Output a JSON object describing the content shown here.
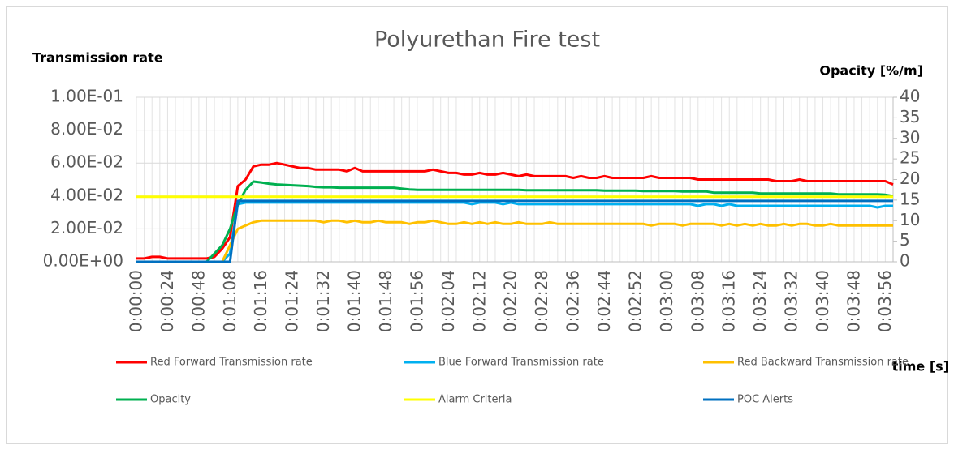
{
  "chart_data": {
    "type": "line",
    "title": "Polyurethan Fire test",
    "y_label": "Transmission rate",
    "y2_label": "Opacity [%/m]",
    "x_label": "time [s]",
    "categories": [
      "0:00:00",
      null,
      null,
      null,
      "0:00:24",
      null,
      null,
      null,
      "0:00:48",
      null,
      null,
      null,
      "0:01:08",
      null,
      null,
      null,
      "0:01:16",
      null,
      null,
      null,
      "0:01:24",
      null,
      null,
      null,
      "0:01:32",
      null,
      null,
      null,
      "0:01:40",
      null,
      null,
      null,
      "0:01:48",
      null,
      null,
      null,
      "0:01:56",
      null,
      null,
      null,
      "0:02:04",
      null,
      null,
      null,
      "0:02:12",
      null,
      null,
      null,
      "0:02:20",
      null,
      null,
      null,
      "0:02:28",
      null,
      null,
      null,
      "0:02:36",
      null,
      null,
      null,
      "0:02:44",
      null,
      null,
      null,
      "0:02:52",
      null,
      null,
      null,
      "0:03:00",
      null,
      null,
      null,
      "0:03:08",
      null,
      null,
      null,
      "0:03:16",
      null,
      null,
      null,
      "0:03:24",
      null,
      null,
      null,
      "0:03:32",
      null,
      null,
      null,
      "0:03:40",
      null,
      null,
      null,
      "0:03:48",
      null,
      null,
      null,
      "0:03:56",
      null
    ],
    "series": [
      {
        "name": "Red Forward Transmission rate",
        "color": "#ff0000",
        "values": [
          0.002,
          0.002,
          0.003,
          0.003,
          0.002,
          0.002,
          0.002,
          0.002,
          0.002,
          0.002,
          0.003,
          0.008,
          0.015,
          0.046,
          0.05,
          0.058,
          0.059,
          0.059,
          0.06,
          0.059,
          0.058,
          0.057,
          0.057,
          0.056,
          0.056,
          0.056,
          0.056,
          0.055,
          0.057,
          0.055,
          0.055,
          0.055,
          0.055,
          0.055,
          0.055,
          0.055,
          0.055,
          0.055,
          0.056,
          0.055,
          0.054,
          0.054,
          0.053,
          0.053,
          0.054,
          0.053,
          0.053,
          0.054,
          0.053,
          0.052,
          0.053,
          0.052,
          0.052,
          0.052,
          0.052,
          0.052,
          0.051,
          0.052,
          0.051,
          0.051,
          0.052,
          0.051,
          0.051,
          0.051,
          0.051,
          0.051,
          0.052,
          0.051,
          0.051,
          0.051,
          0.051,
          0.051,
          0.05,
          0.05,
          0.05,
          0.05,
          0.05,
          0.05,
          0.05,
          0.05,
          0.05,
          0.05,
          0.049,
          0.049,
          0.049,
          0.05,
          0.049,
          0.049,
          0.049,
          0.049,
          0.049,
          0.049,
          0.049,
          0.049,
          0.049,
          0.049,
          0.049,
          0.047
        ]
      },
      {
        "name": "Blue Forward Transmission rate",
        "color": "#00b0f0",
        "values": [
          0,
          0,
          0,
          0,
          0,
          0,
          0,
          0,
          0,
          0,
          0,
          0,
          0.005,
          0.035,
          0.036,
          0.036,
          0.036,
          0.036,
          0.036,
          0.036,
          0.036,
          0.036,
          0.036,
          0.036,
          0.036,
          0.036,
          0.036,
          0.036,
          0.036,
          0.036,
          0.036,
          0.036,
          0.036,
          0.036,
          0.036,
          0.036,
          0.036,
          0.036,
          0.036,
          0.036,
          0.036,
          0.036,
          0.036,
          0.035,
          0.036,
          0.036,
          0.036,
          0.035,
          0.036,
          0.035,
          0.035,
          0.035,
          0.035,
          0.035,
          0.035,
          0.035,
          0.035,
          0.035,
          0.035,
          0.035,
          0.035,
          0.035,
          0.035,
          0.035,
          0.035,
          0.035,
          0.035,
          0.035,
          0.035,
          0.035,
          0.035,
          0.035,
          0.034,
          0.035,
          0.035,
          0.034,
          0.035,
          0.034,
          0.034,
          0.034,
          0.034,
          0.034,
          0.034,
          0.034,
          0.034,
          0.034,
          0.034,
          0.034,
          0.034,
          0.034,
          0.034,
          0.034,
          0.034,
          0.034,
          0.034,
          0.033,
          0.034,
          0.034
        ]
      },
      {
        "name": "Red Backward Transmission rate",
        "color": "#ffc000",
        "values": [
          0,
          0,
          0,
          0,
          0,
          0,
          0,
          0,
          0,
          0,
          0,
          0,
          0.01,
          0.02,
          0.022,
          0.024,
          0.025,
          0.025,
          0.025,
          0.025,
          0.025,
          0.025,
          0.025,
          0.025,
          0.024,
          0.025,
          0.025,
          0.024,
          0.025,
          0.024,
          0.024,
          0.025,
          0.024,
          0.024,
          0.024,
          0.023,
          0.024,
          0.024,
          0.025,
          0.024,
          0.023,
          0.023,
          0.024,
          0.023,
          0.024,
          0.023,
          0.024,
          0.023,
          0.023,
          0.024,
          0.023,
          0.023,
          0.023,
          0.024,
          0.023,
          0.023,
          0.023,
          0.023,
          0.023,
          0.023,
          0.023,
          0.023,
          0.023,
          0.023,
          0.023,
          0.023,
          0.022,
          0.023,
          0.023,
          0.023,
          0.022,
          0.023,
          0.023,
          0.023,
          0.023,
          0.022,
          0.023,
          0.022,
          0.023,
          0.022,
          0.023,
          0.022,
          0.022,
          0.023,
          0.022,
          0.023,
          0.023,
          0.022,
          0.022,
          0.023,
          0.022,
          0.022,
          0.022,
          0.022,
          0.022,
          0.022,
          0.022,
          0.022
        ]
      },
      {
        "name": "Opacity",
        "color": "#00b050",
        "axis": "y2",
        "values": [
          0,
          0,
          0,
          0,
          0,
          0,
          0,
          0,
          0,
          0,
          2,
          4,
          8,
          14,
          17.5,
          19.5,
          19.3,
          19,
          18.8,
          18.7,
          18.6,
          18.5,
          18.4,
          18.2,
          18.1,
          18.1,
          18,
          18,
          18,
          18,
          18,
          18,
          18,
          18,
          17.8,
          17.6,
          17.5,
          17.5,
          17.5,
          17.5,
          17.5,
          17.5,
          17.5,
          17.5,
          17.5,
          17.5,
          17.5,
          17.5,
          17.5,
          17.5,
          17.4,
          17.4,
          17.4,
          17.4,
          17.4,
          17.4,
          17.4,
          17.4,
          17.4,
          17.4,
          17.3,
          17.3,
          17.3,
          17.3,
          17.3,
          17.2,
          17.2,
          17.2,
          17.2,
          17.2,
          17.1,
          17.1,
          17.1,
          17.1,
          16.8,
          16.8,
          16.8,
          16.8,
          16.8,
          16.8,
          16.6,
          16.6,
          16.6,
          16.6,
          16.6,
          16.6,
          16.6,
          16.6,
          16.6,
          16.6,
          16.4,
          16.4,
          16.4,
          16.4,
          16.4,
          16.4,
          16.3,
          16
        ]
      },
      {
        "name": "Alarm Criteria",
        "color": "#ffff00",
        "axis": "y2",
        "values": [
          15.8,
          15.8,
          15.8,
          15.8,
          15.8,
          15.8,
          15.8,
          15.8,
          15.8,
          15.8,
          15.8,
          15.8,
          15.8,
          15.8,
          15.8,
          15.8,
          15.8,
          15.8,
          15.8,
          15.8,
          15.8,
          15.8,
          15.8,
          15.8,
          15.8,
          15.8,
          15.8,
          15.8,
          15.8,
          15.8,
          15.8,
          15.8,
          15.8,
          15.8,
          15.8,
          15.8,
          15.8,
          15.8,
          15.8,
          15.8,
          15.8,
          15.8,
          15.8,
          15.8,
          15.8,
          15.8,
          15.8,
          15.8,
          15.8,
          15.8,
          15.8,
          15.8,
          15.8,
          15.8,
          15.8,
          15.8,
          15.8,
          15.8,
          15.8,
          15.8,
          15.8,
          15.8,
          15.8,
          15.8,
          15.8,
          15.8,
          15.8,
          15.8,
          15.8,
          15.8,
          15.8,
          15.8,
          15.8,
          15.8,
          15.8,
          15.8,
          15.8,
          15.8,
          15.8,
          15.8,
          15.8,
          15.8,
          15.8,
          15.8,
          15.8,
          15.8,
          15.8,
          15.8,
          15.8,
          15.8,
          15.8,
          15.8,
          15.8,
          15.8,
          15.8,
          15.8,
          15.8,
          15.8
        ]
      },
      {
        "name": "POC Alerts",
        "color": "#0070c0",
        "axis": "y2",
        "values": [
          0,
          0,
          0,
          0,
          0,
          0,
          0,
          0,
          0,
          0,
          0,
          0,
          0,
          14.8,
          14.8,
          14.8,
          14.8,
          14.8,
          14.8,
          14.8,
          14.8,
          14.8,
          14.8,
          14.8,
          14.8,
          14.8,
          14.8,
          14.8,
          14.8,
          14.8,
          14.8,
          14.8,
          14.8,
          14.8,
          14.8,
          14.8,
          14.8,
          14.8,
          14.8,
          14.8,
          14.8,
          14.8,
          14.8,
          14.8,
          14.8,
          14.8,
          14.8,
          14.8,
          14.8,
          14.8,
          14.8,
          14.8,
          14.8,
          14.8,
          14.8,
          14.8,
          14.8,
          14.8,
          14.8,
          14.8,
          14.8,
          14.8,
          14.8,
          14.8,
          14.8,
          14.8,
          14.8,
          14.8,
          14.8,
          14.8,
          14.8,
          14.8,
          14.8,
          14.8,
          14.8,
          14.8,
          14.8,
          14.8,
          14.8,
          14.8,
          14.8,
          14.8,
          14.8,
          14.8,
          14.8,
          14.8,
          14.8,
          14.8,
          14.8,
          14.8,
          14.8,
          14.8,
          14.8,
          14.8,
          14.8,
          14.8,
          14.8,
          14.8
        ]
      }
    ],
    "ylim": [
      0,
      0.1
    ],
    "yticks": [
      {
        "value": 0,
        "label": "0.00E+00"
      },
      {
        "value": 0.02,
        "label": "2.00E-02"
      },
      {
        "value": 0.04,
        "label": "4.00E-02"
      },
      {
        "value": 0.06,
        "label": "6.00E-02"
      },
      {
        "value": 0.08,
        "label": "8.00E-02"
      },
      {
        "value": 0.1,
        "label": "1.00E-01"
      }
    ],
    "y2lim": [
      0,
      40
    ],
    "y2ticks": [
      0,
      5,
      10,
      15,
      20,
      25,
      30,
      35,
      40
    ],
    "grid": true,
    "legend": "bottom"
  }
}
